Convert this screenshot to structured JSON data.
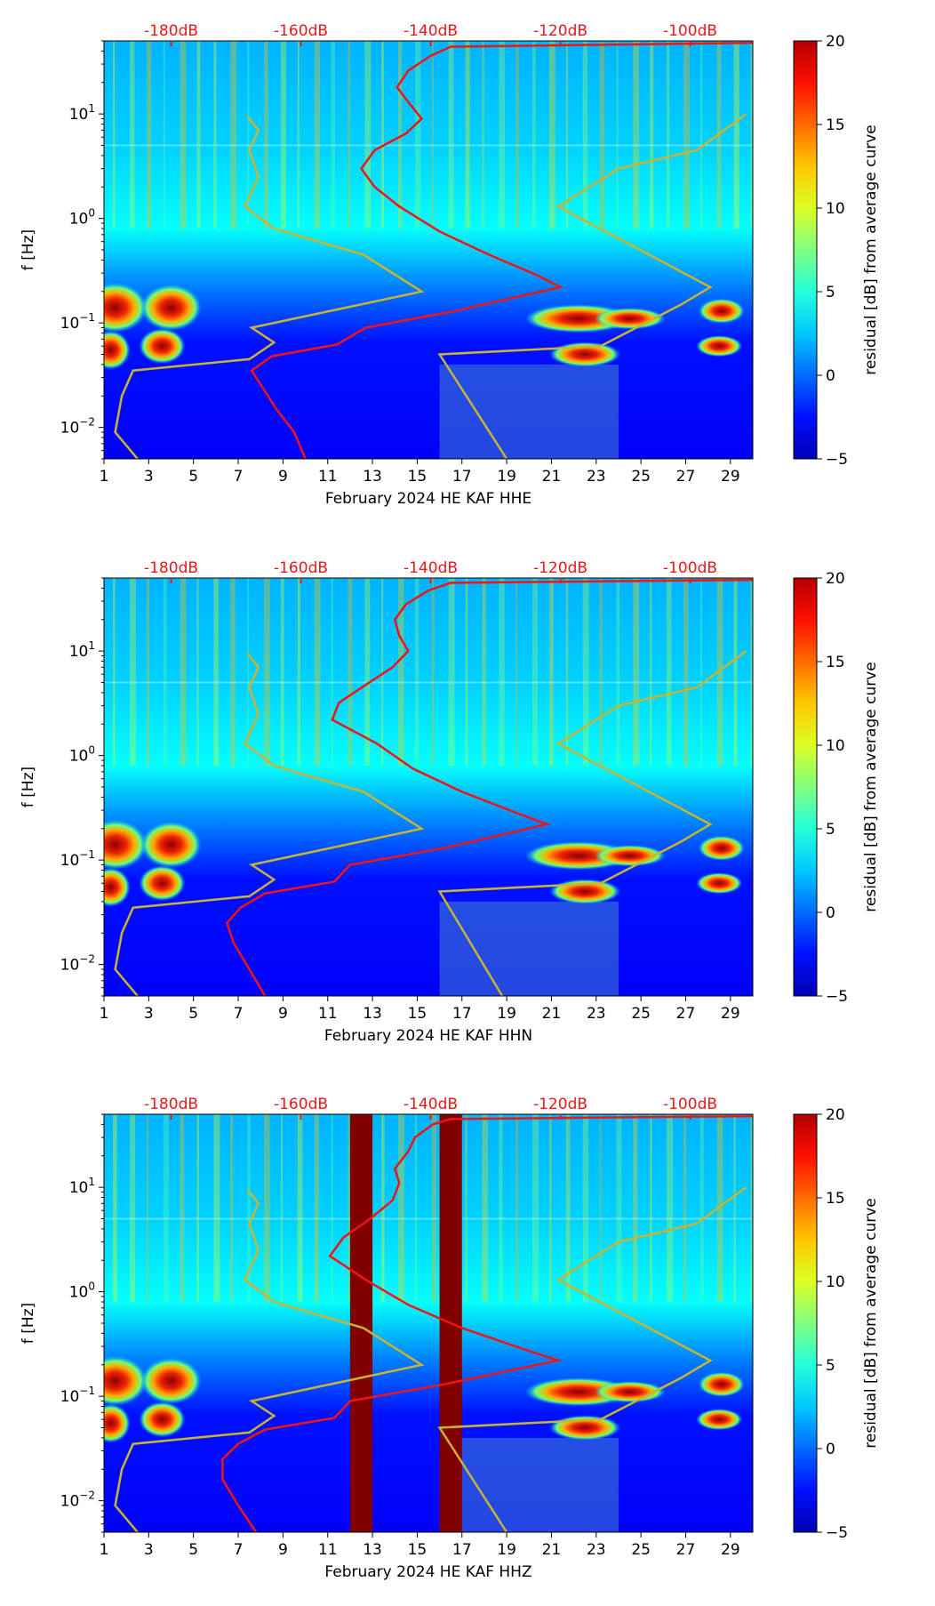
{
  "chart_data": [
    {
      "type": "heatmap",
      "channel": "HHE",
      "xlabel": "February 2024 HE KAF  HHE",
      "ylabel": "f [Hz]",
      "x_ticks": [
        "1",
        "3",
        "5",
        "7",
        "9",
        "11",
        "13",
        "15",
        "17",
        "19",
        "21",
        "23",
        "25",
        "27",
        "29"
      ],
      "x_range": [
        1,
        30
      ],
      "y_range_hz": [
        0.005,
        50
      ],
      "y_ticks": [
        {
          "exp": "-2",
          "value": 0.01
        },
        {
          "exp": "-1",
          "value": 0.1
        },
        {
          "exp": "0",
          "value": 1
        },
        {
          "exp": "1",
          "value": 10
        }
      ],
      "top_db_ticks": [
        "-180dB",
        "-160dB",
        "-140dB",
        "-120dB",
        "-100dB"
      ],
      "top_db_positions_day": [
        4.0,
        9.8,
        15.6,
        21.4,
        27.2
      ],
      "colorbar": {
        "label": "residual [dB] from average curve",
        "min": -5,
        "max": 20,
        "ticks": [
          "−5",
          "0",
          "5",
          "10",
          "15",
          "20"
        ]
      },
      "red_curve": [
        [
          10.0,
          0.005
        ],
        [
          9.5,
          0.009
        ],
        [
          8.7,
          0.015
        ],
        [
          8.1,
          0.024
        ],
        [
          7.6,
          0.035
        ],
        [
          8.5,
          0.048
        ],
        [
          11.4,
          0.062
        ],
        [
          12.7,
          0.09
        ],
        [
          16.7,
          0.13
        ],
        [
          21.4,
          0.22
        ],
        [
          20.3,
          0.29
        ],
        [
          18.2,
          0.45
        ],
        [
          16.0,
          0.75
        ],
        [
          14.2,
          1.3
        ],
        [
          13.1,
          2.0
        ],
        [
          12.5,
          3.0
        ],
        [
          13.1,
          4.5
        ],
        [
          14.5,
          6.5
        ],
        [
          15.2,
          9.0
        ],
        [
          14.6,
          13.0
        ],
        [
          14.1,
          18.0
        ],
        [
          14.6,
          26.0
        ],
        [
          15.6,
          36.0
        ],
        [
          16.5,
          44.0
        ],
        [
          30,
          48
        ]
      ],
      "yellow_curves": [
        [
          [
            2.5,
            0.005
          ],
          [
            1.5,
            0.009
          ],
          [
            1.8,
            0.02
          ],
          [
            2.3,
            0.035
          ],
          [
            7.5,
            0.045
          ],
          [
            8.6,
            0.065
          ],
          [
            7.6,
            0.09
          ],
          [
            15.2,
            0.2
          ],
          [
            12.6,
            0.45
          ],
          [
            8.6,
            0.8
          ],
          [
            7.3,
            1.3
          ],
          [
            7.9,
            2.5
          ],
          [
            7.5,
            4.5
          ],
          [
            7.9,
            7.0
          ],
          [
            7.4,
            9.5
          ]
        ],
        [
          [
            19.0,
            0.005
          ],
          [
            16.0,
            0.05
          ],
          [
            23.2,
            0.06
          ],
          [
            26.8,
            0.15
          ],
          [
            28.1,
            0.22
          ],
          [
            21.3,
            1.3
          ],
          [
            24.0,
            3.0
          ],
          [
            27.5,
            4.5
          ],
          [
            29.7,
            10.0
          ]
        ]
      ],
      "blocked_days": []
    },
    {
      "type": "heatmap",
      "channel": "HHN",
      "xlabel": "February 2024 HE KAF  HHN",
      "ylabel": "f [Hz]",
      "x_ticks": [
        "1",
        "3",
        "5",
        "7",
        "9",
        "11",
        "13",
        "15",
        "17",
        "19",
        "21",
        "23",
        "25",
        "27",
        "29"
      ],
      "x_range": [
        1,
        30
      ],
      "y_range_hz": [
        0.005,
        50
      ],
      "y_ticks": [
        {
          "exp": "-2",
          "value": 0.01
        },
        {
          "exp": "-1",
          "value": 0.1
        },
        {
          "exp": "0",
          "value": 1
        },
        {
          "exp": "1",
          "value": 10
        }
      ],
      "top_db_ticks": [
        "-180dB",
        "-160dB",
        "-140dB",
        "-120dB",
        "-100dB"
      ],
      "top_db_positions_day": [
        4.0,
        9.8,
        15.6,
        21.4,
        27.2
      ],
      "colorbar": {
        "label": "residual [dB] from average curve",
        "min": -5,
        "max": 20,
        "ticks": [
          "−5",
          "0",
          "5",
          "10",
          "15",
          "20"
        ]
      },
      "red_curve": [
        [
          8.2,
          0.005
        ],
        [
          7.5,
          0.009
        ],
        [
          6.8,
          0.016
        ],
        [
          6.5,
          0.025
        ],
        [
          7.1,
          0.035
        ],
        [
          8.2,
          0.048
        ],
        [
          11.3,
          0.062
        ],
        [
          12.0,
          0.09
        ],
        [
          16.2,
          0.13
        ],
        [
          20.8,
          0.22
        ],
        [
          19.3,
          0.29
        ],
        [
          17.0,
          0.45
        ],
        [
          14.8,
          0.75
        ],
        [
          13.2,
          1.3
        ],
        [
          11.2,
          2.2
        ],
        [
          11.5,
          3.2
        ],
        [
          12.6,
          4.6
        ],
        [
          13.9,
          7.0
        ],
        [
          14.6,
          10.0
        ],
        [
          14.2,
          14.0
        ],
        [
          14.0,
          20.0
        ],
        [
          14.5,
          28.0
        ],
        [
          15.5,
          38.0
        ],
        [
          16.5,
          45.0
        ],
        [
          30,
          48
        ]
      ],
      "yellow_curves": [
        [
          [
            2.5,
            0.005
          ],
          [
            1.5,
            0.009
          ],
          [
            1.8,
            0.02
          ],
          [
            2.3,
            0.035
          ],
          [
            7.5,
            0.045
          ],
          [
            8.6,
            0.065
          ],
          [
            7.6,
            0.09
          ],
          [
            15.2,
            0.2
          ],
          [
            12.6,
            0.45
          ],
          [
            8.6,
            0.8
          ],
          [
            7.3,
            1.3
          ],
          [
            7.9,
            2.5
          ],
          [
            7.5,
            4.5
          ],
          [
            7.9,
            7.0
          ],
          [
            7.4,
            9.5
          ]
        ],
        [
          [
            18.8,
            0.005
          ],
          [
            16.0,
            0.05
          ],
          [
            23.2,
            0.06
          ],
          [
            26.8,
            0.15
          ],
          [
            28.1,
            0.22
          ],
          [
            21.3,
            1.3
          ],
          [
            24.0,
            3.0
          ],
          [
            27.5,
            4.5
          ],
          [
            29.7,
            10.0
          ]
        ]
      ],
      "blocked_days": []
    },
    {
      "type": "heatmap",
      "channel": "HHZ",
      "xlabel": "February 2024 HE KAF  HHZ",
      "ylabel": "f [Hz]",
      "x_ticks": [
        "1",
        "3",
        "5",
        "7",
        "9",
        "11",
        "13",
        "15",
        "17",
        "19",
        "21",
        "23",
        "25",
        "27",
        "29"
      ],
      "x_range": [
        1,
        30
      ],
      "y_range_hz": [
        0.005,
        50
      ],
      "y_ticks": [
        {
          "exp": "-2",
          "value": 0.01
        },
        {
          "exp": "-1",
          "value": 0.1
        },
        {
          "exp": "0",
          "value": 1
        },
        {
          "exp": "1",
          "value": 10
        }
      ],
      "top_db_ticks": [
        "-180dB",
        "-160dB",
        "-140dB",
        "-120dB",
        "-100dB"
      ],
      "top_db_positions_day": [
        4.0,
        9.8,
        15.6,
        21.4,
        27.2
      ],
      "colorbar": {
        "label": "residual [dB] from average curve",
        "min": -5,
        "max": 20,
        "ticks": [
          "−5",
          "0",
          "5",
          "10",
          "15",
          "20"
        ]
      },
      "red_curve": [
        [
          7.8,
          0.005
        ],
        [
          7.0,
          0.009
        ],
        [
          6.3,
          0.016
        ],
        [
          6.3,
          0.025
        ],
        [
          7.0,
          0.035
        ],
        [
          8.2,
          0.048
        ],
        [
          11.3,
          0.062
        ],
        [
          12.0,
          0.09
        ],
        [
          16.2,
          0.13
        ],
        [
          21.3,
          0.22
        ],
        [
          19.6,
          0.29
        ],
        [
          17.0,
          0.45
        ],
        [
          14.6,
          0.75
        ],
        [
          12.7,
          1.3
        ],
        [
          11.1,
          2.2
        ],
        [
          11.7,
          3.3
        ],
        [
          12.9,
          5.0
        ],
        [
          13.9,
          7.5
        ],
        [
          14.2,
          11.0
        ],
        [
          14.0,
          15.0
        ],
        [
          14.6,
          22.0
        ],
        [
          14.9,
          30.0
        ],
        [
          15.7,
          40.0
        ],
        [
          16.5,
          45.0
        ],
        [
          30,
          48
        ]
      ],
      "yellow_curves": [
        [
          [
            2.5,
            0.005
          ],
          [
            1.5,
            0.009
          ],
          [
            1.8,
            0.02
          ],
          [
            2.3,
            0.035
          ],
          [
            7.5,
            0.045
          ],
          [
            8.6,
            0.065
          ],
          [
            7.6,
            0.09
          ],
          [
            15.2,
            0.2
          ],
          [
            12.6,
            0.45
          ],
          [
            8.6,
            0.8
          ],
          [
            7.3,
            1.3
          ],
          [
            7.9,
            2.5
          ],
          [
            7.5,
            4.5
          ],
          [
            7.9,
            7.0
          ],
          [
            7.4,
            9.5
          ]
        ],
        [
          [
            19.0,
            0.005
          ],
          [
            16.0,
            0.05
          ],
          [
            23.2,
            0.06
          ],
          [
            26.8,
            0.15
          ],
          [
            28.1,
            0.22
          ],
          [
            21.3,
            1.3
          ],
          [
            24.0,
            3.0
          ],
          [
            27.5,
            4.5
          ],
          [
            29.7,
            10.0
          ]
        ]
      ],
      "blocked_days": [
        [
          12.0,
          13.0
        ],
        [
          16.0,
          17.0
        ]
      ]
    }
  ],
  "colors": {
    "red_curve": "#f01515",
    "yellow_curve": "#c8b432",
    "db_label": "#e8181d",
    "blocked": "#800000"
  }
}
